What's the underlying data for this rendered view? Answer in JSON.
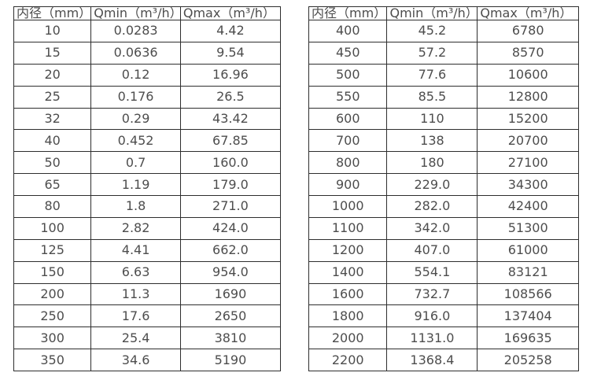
{
  "colors": {
    "background": "#ffffff",
    "border": "#2e2e2e",
    "text": "#4d4d4d"
  },
  "tables": [
    {
      "id": "flow-table-small-diameters",
      "headers": [
        "内径（mm）",
        "Qmin（m³/h）",
        "Qmax（m³/h）"
      ],
      "rows": [
        [
          "10",
          "0.0283",
          "4.42"
        ],
        [
          "15",
          "0.0636",
          "9.54"
        ],
        [
          "20",
          "0.12",
          "16.96"
        ],
        [
          "25",
          "0.176",
          "26.5"
        ],
        [
          "32",
          "0.29",
          "43.42"
        ],
        [
          "40",
          "0.452",
          "67.85"
        ],
        [
          "50",
          "0.7",
          "160.0"
        ],
        [
          "65",
          "1.19",
          "179.0"
        ],
        [
          "80",
          "1.8",
          "271.0"
        ],
        [
          "100",
          "2.82",
          "424.0"
        ],
        [
          "125",
          "4.41",
          "662.0"
        ],
        [
          "150",
          "6.63",
          "954.0"
        ],
        [
          "200",
          "11.3",
          "1690"
        ],
        [
          "250",
          "17.6",
          "2650"
        ],
        [
          "300",
          "25.4",
          "3810"
        ],
        [
          "350",
          "34.6",
          "5190"
        ]
      ]
    },
    {
      "id": "flow-table-large-diameters",
      "headers": [
        "内径（mm）",
        "Qmin（m³/h）",
        "Qmax（m³/h）"
      ],
      "rows": [
        [
          "400",
          "45.2",
          "6780"
        ],
        [
          "450",
          "57.2",
          "8570"
        ],
        [
          "500",
          "77.6",
          "10600"
        ],
        [
          "550",
          "85.5",
          "12800"
        ],
        [
          "600",
          "110",
          "15200"
        ],
        [
          "700",
          "138",
          "20700"
        ],
        [
          "800",
          "180",
          "27100"
        ],
        [
          "900",
          "229.0",
          "34300"
        ],
        [
          "1000",
          "282.0",
          "42400"
        ],
        [
          "1100",
          "342.0",
          "51300"
        ],
        [
          "1200",
          "407.0",
          "61000"
        ],
        [
          "1400",
          "554.1",
          "83121"
        ],
        [
          "1600",
          "732.7",
          "108566"
        ],
        [
          "1800",
          "916.0",
          "137404"
        ],
        [
          "2000",
          "1131.0",
          "169635"
        ],
        [
          "2200",
          "1368.4",
          "205258"
        ]
      ]
    }
  ]
}
